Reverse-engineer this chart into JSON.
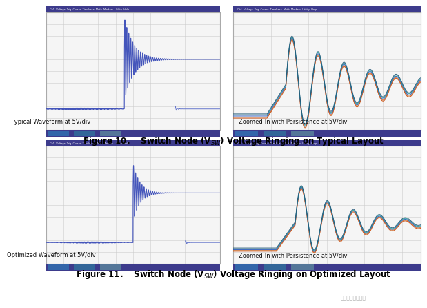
{
  "fig_width": 5.54,
  "fig_height": 4.5,
  "bg_color": "#ffffff",
  "scope_bg": "#f5f5f5",
  "scope_header_color": "#3d3b8c",
  "scope_grid_color": "#cccccc",
  "label_top_left": "Typical Waveform at 5V/div",
  "label_top_right": "Zoomed-In with Persistence at 5V/div",
  "label_bot_left": "Optimized Waveform at 5V/div",
  "label_bot_right": "Zoomed-In with Persistence at 5V/div",
  "caption1": "Figure 10.    Switch Node (V$_{SW}$) Voltage Ringing on Typical Layout",
  "caption2": "Figure 11.    Switch Node (V$_{SW}$) Voltage Ringing on Optimized Layout",
  "watermark": "硬件十万个为什么"
}
